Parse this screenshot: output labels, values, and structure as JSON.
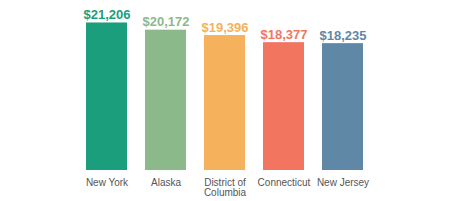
{
  "chart_data": {
    "type": "bar",
    "categories": [
      "New York",
      "Alaska",
      "District of Columbia",
      "Connecticut",
      "New Jersey"
    ],
    "values": [
      21206,
      20172,
      19396,
      18377,
      18235
    ],
    "value_labels": [
      "$21,206",
      "$20,172",
      "$19,396",
      "$18,377",
      "$18,235"
    ],
    "colors": [
      "#1a9e7c",
      "#8cb98a",
      "#f5b15c",
      "#f2765f",
      "#5f87a6"
    ],
    "ylim": [
      0,
      23000
    ],
    "data_labels": true,
    "tick_labels": "x",
    "grid": false
  }
}
